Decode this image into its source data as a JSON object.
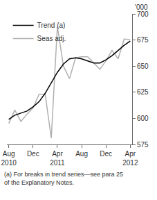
{
  "chart_data": {
    "type": "line",
    "categories": [
      "Aug\n2010",
      null,
      null,
      null,
      "Dec",
      null,
      null,
      null,
      "Apr\n2011",
      null,
      null,
      null,
      "Aug",
      null,
      null,
      null,
      "Dec",
      null,
      null,
      null,
      "Apr\n2012"
    ],
    "series": [
      {
        "name": "Trend (a)",
        "color": "#000000",
        "values": [
          599,
          603,
          605,
          607,
          611,
          616,
          624,
          634,
          644,
          652,
          657,
          658,
          657,
          655,
          653,
          653,
          656,
          660,
          665,
          670,
          674
        ]
      },
      {
        "name": "Seas adj.",
        "color": "#b0b0b0",
        "values": [
          595,
          608,
          597,
          604,
          610,
          623,
          623,
          581,
          688,
          650,
          638,
          658,
          659,
          659,
          653,
          647,
          655,
          665,
          657,
          676,
          675
        ]
      }
    ],
    "ylim": [
      575,
      700
    ],
    "yticks": [
      575,
      600,
      625,
      650,
      675,
      700
    ],
    "y_unit": "'000",
    "footnote": [
      "(a) For breaks in trend series—see para 25",
      "of the Explanatory Notes."
    ],
    "grid": false,
    "legend": "top-left"
  }
}
